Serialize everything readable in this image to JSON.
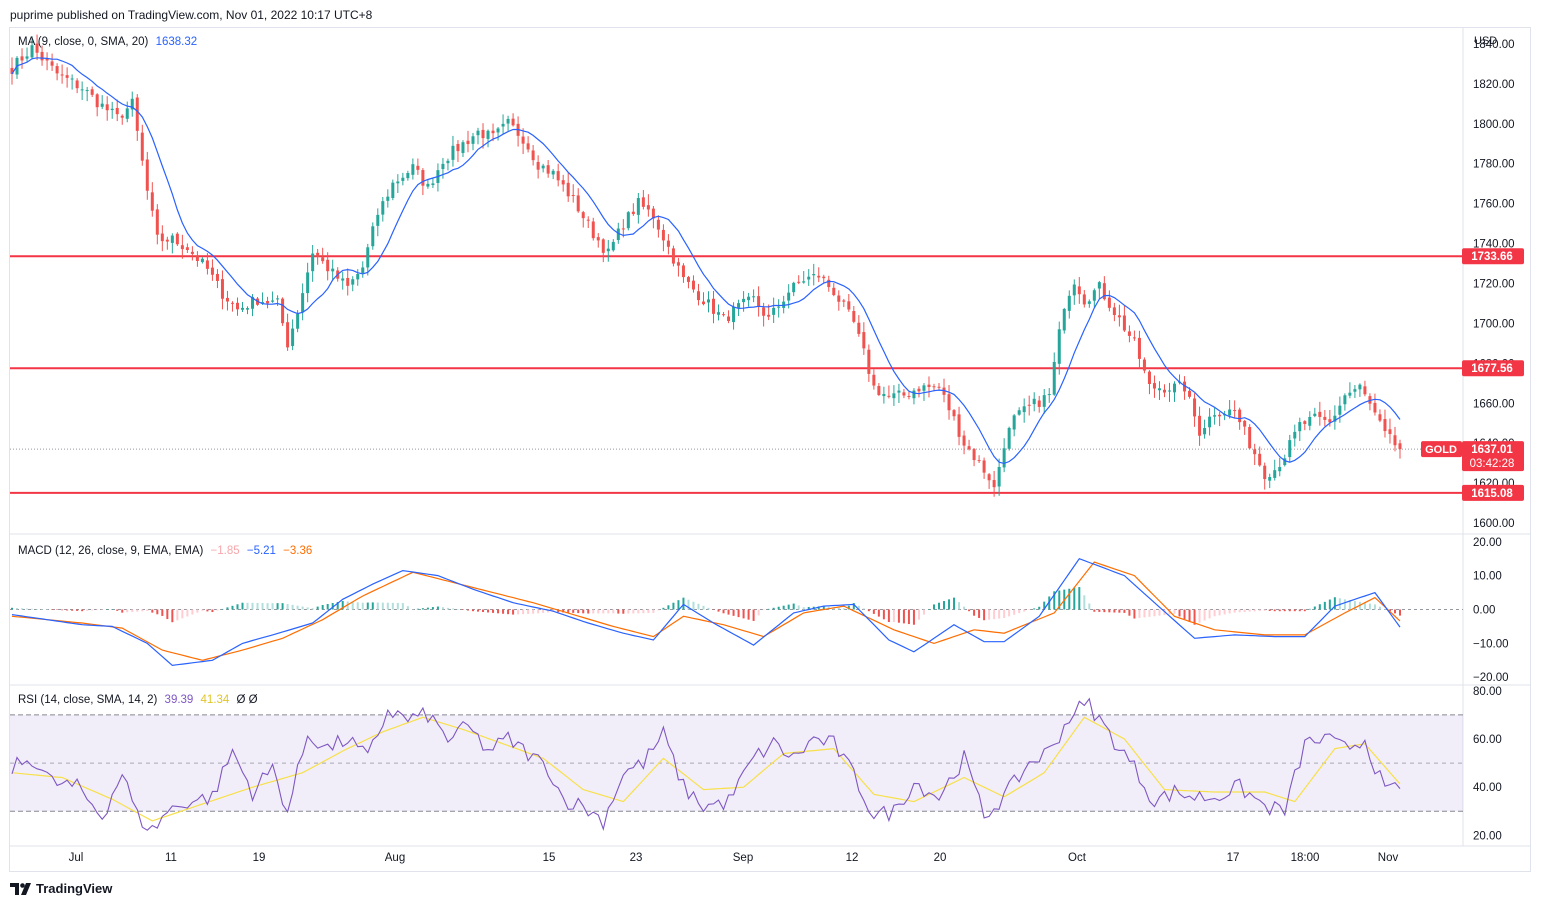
{
  "header": {
    "publisher_line": "puprime published on TradingView.com, Nov 01, 2022 10:17 UTC+8"
  },
  "footer": {
    "brand": "TradingView",
    "logo_icon": "tradingview-logo-icon"
  },
  "colors": {
    "up": "#26a69a",
    "down": "#ef5350",
    "level": "#f23645",
    "ma": "#2962ff",
    "macd": "#2962ff",
    "signal": "#ff6d00",
    "rsi": "#7e57c2",
    "rsi_ma": "#f7e04a"
  },
  "legends": {
    "ma": {
      "name": "MA (9, close, 0, SMA, 20)",
      "value": "1638.32"
    },
    "macd": {
      "name": "MACD (12, 26, close, 9, EMA, EMA)",
      "hist": "−1.85",
      "macd": "−5.21",
      "signal": "−3.36"
    },
    "rsi": {
      "name": "RSI (14, close, SMA, 14, 2)",
      "rsi": "39.39",
      "ma": "41.34",
      "extra": "Ø  Ø"
    }
  },
  "price_axis": {
    "currency": "USD"
  },
  "price_labels": {
    "symbol": "GOLD",
    "last": "1637.01",
    "countdown": "03:42:28",
    "levels": [
      1733.66,
      1677.56,
      1615.08
    ],
    "level_texts": [
      "1733.66",
      "1677.56",
      "1615.08"
    ]
  },
  "chart_data": [
    {
      "type": "candlestick",
      "title": "",
      "symbol": "GOLD",
      "currency": "USD",
      "ylim": [
        1595,
        1848
      ],
      "yticks": [
        1600,
        1620,
        1640,
        1660,
        1680,
        1700,
        1720,
        1740,
        1760,
        1780,
        1800,
        1820,
        1840
      ],
      "ytick_labels": [
        "1600.00",
        "1620.00",
        "1640.00",
        "1660.00",
        "1680.00",
        "1700.00",
        "1720.00",
        "1740.00",
        "1760.00",
        "1780.00",
        "1800.00",
        "1820.00",
        "1840.00"
      ],
      "x_tick_labels": [
        "Jul",
        "11",
        "19",
        "Aug",
        "15",
        "23",
        "Sep",
        "12",
        "20",
        "Oct",
        "17",
        "18:00",
        "Nov"
      ],
      "close_path_points": [
        [
          0,
          1828
        ],
        [
          4,
          1838
        ],
        [
          9,
          1825
        ],
        [
          14,
          1818
        ],
        [
          17,
          1811
        ],
        [
          21,
          1803
        ],
        [
          24,
          1810
        ],
        [
          27,
          1766
        ],
        [
          29,
          1742
        ],
        [
          32,
          1742
        ],
        [
          35,
          1738
        ],
        [
          39,
          1727
        ],
        [
          42,
          1715
        ],
        [
          45,
          1707
        ],
        [
          49,
          1712
        ],
        [
          53,
          1710
        ],
        [
          55,
          1690
        ],
        [
          57,
          1706
        ],
        [
          60,
          1736
        ],
        [
          64,
          1725
        ],
        [
          67,
          1718
        ],
        [
          70,
          1728
        ],
        [
          73,
          1755
        ],
        [
          76,
          1770
        ],
        [
          80,
          1778
        ],
        [
          83,
          1768
        ],
        [
          86,
          1782
        ],
        [
          90,
          1790
        ],
        [
          93,
          1796
        ],
        [
          96,
          1793
        ],
        [
          99,
          1800
        ],
        [
          102,
          1793
        ],
        [
          105,
          1780
        ],
        [
          108,
          1775
        ],
        [
          112,
          1762
        ],
        [
          116,
          1745
        ],
        [
          119,
          1735
        ],
        [
          122,
          1750
        ],
        [
          125,
          1760
        ],
        [
          128,
          1754
        ],
        [
          131,
          1738
        ],
        [
          134,
          1722
        ],
        [
          138,
          1712
        ],
        [
          142,
          1702
        ],
        [
          145,
          1708
        ],
        [
          148,
          1712
        ],
        [
          151,
          1702
        ],
        [
          155,
          1716
        ],
        [
          158,
          1722
        ],
        [
          161,
          1724
        ],
        [
          164,
          1716
        ],
        [
          168,
          1700
        ],
        [
          170,
          1685
        ],
        [
          172,
          1668
        ],
        [
          175,
          1663
        ],
        [
          178,
          1664
        ],
        [
          181,
          1668
        ],
        [
          185,
          1668
        ],
        [
          188,
          1652
        ],
        [
          190,
          1640
        ],
        [
          193,
          1630
        ],
        [
          195,
          1623
        ],
        [
          196,
          1617
        ],
        [
          198,
          1640
        ],
        [
          200,
          1652
        ],
        [
          203,
          1658
        ],
        [
          207,
          1664
        ],
        [
          210,
          1710
        ],
        [
          212,
          1722
        ],
        [
          214,
          1712
        ],
        [
          217,
          1718
        ],
        [
          220,
          1706
        ],
        [
          224,
          1690
        ],
        [
          227,
          1668
        ],
        [
          230,
          1668
        ],
        [
          234,
          1668
        ],
        [
          237,
          1646
        ],
        [
          240,
          1656
        ],
        [
          244,
          1656
        ],
        [
          247,
          1640
        ],
        [
          250,
          1625
        ],
        [
          252,
          1627
        ],
        [
          254,
          1634
        ],
        [
          257,
          1649
        ],
        [
          260,
          1652
        ],
        [
          263,
          1650
        ],
        [
          266,
          1664
        ],
        [
          269,
          1668
        ],
        [
          271,
          1659
        ],
        [
          274,
          1644
        ],
        [
          277,
          1637
        ]
      ],
      "ma": {
        "name": "MA (9, close, 0, SMA, 20)",
        "last": 1638.32
      },
      "horizontal_levels": [
        1733.66,
        1677.56,
        1615.08
      ],
      "last_price": 1637.01
    },
    {
      "type": "line",
      "name": "MACD (12, 26, close, 9, EMA, EMA)",
      "ylim": [
        -22,
        22
      ],
      "yticks": [
        20,
        10,
        0,
        -10,
        -20
      ],
      "ytick_labels": [
        "20.00",
        "10.00",
        "0.00",
        "−10.00",
        "−20.00"
      ],
      "macd_points": [
        [
          0,
          -1.5
        ],
        [
          14,
          -4.5
        ],
        [
          20,
          -5
        ],
        [
          27,
          -10
        ],
        [
          32,
          -16.5
        ],
        [
          40,
          -15
        ],
        [
          46,
          -10
        ],
        [
          52,
          -7.5
        ],
        [
          60,
          -4
        ],
        [
          66,
          3
        ],
        [
          72,
          7.5
        ],
        [
          78,
          11.5
        ],
        [
          85,
          10
        ],
        [
          92,
          6
        ],
        [
          100,
          2
        ],
        [
          108,
          -0.5
        ],
        [
          115,
          -4
        ],
        [
          122,
          -7
        ],
        [
          128,
          -9
        ],
        [
          134,
          1.5
        ],
        [
          140,
          -4
        ],
        [
          148,
          -10.5
        ],
        [
          156,
          -1
        ],
        [
          162,
          1
        ],
        [
          168,
          1.5
        ],
        [
          175,
          -9
        ],
        [
          180,
          -12.5
        ],
        [
          188,
          -4.5
        ],
        [
          194,
          -9.5
        ],
        [
          198,
          -9.5
        ],
        [
          205,
          -2
        ],
        [
          213,
          15
        ],
        [
          222,
          10
        ],
        [
          228,
          2
        ],
        [
          236,
          -8.5
        ],
        [
          244,
          -7.5
        ],
        [
          252,
          -8
        ],
        [
          258,
          -8
        ],
        [
          264,
          1
        ],
        [
          272,
          5
        ],
        [
          277,
          -5.2
        ]
      ],
      "signal_points": [
        [
          0,
          -2
        ],
        [
          14,
          -4
        ],
        [
          22,
          -5.5
        ],
        [
          30,
          -12
        ],
        [
          38,
          -15
        ],
        [
          46,
          -12
        ],
        [
          54,
          -8.5
        ],
        [
          62,
          -3
        ],
        [
          70,
          4
        ],
        [
          80,
          11
        ],
        [
          88,
          8
        ],
        [
          96,
          5
        ],
        [
          104,
          2
        ],
        [
          112,
          -1.5
        ],
        [
          120,
          -5
        ],
        [
          128,
          -8
        ],
        [
          134,
          -2
        ],
        [
          142,
          -4.5
        ],
        [
          150,
          -8
        ],
        [
          158,
          -1
        ],
        [
          166,
          1
        ],
        [
          176,
          -6
        ],
        [
          184,
          -10
        ],
        [
          192,
          -6
        ],
        [
          198,
          -7
        ],
        [
          208,
          -1
        ],
        [
          216,
          14
        ],
        [
          224,
          10
        ],
        [
          232,
          -2
        ],
        [
          240,
          -6
        ],
        [
          250,
          -7.5
        ],
        [
          258,
          -7.5
        ],
        [
          266,
          -1
        ],
        [
          272,
          3.5
        ],
        [
          277,
          -3.4
        ]
      ],
      "hist_last": -1.85,
      "macd_last": -5.21,
      "signal_last": -3.36
    },
    {
      "type": "line",
      "name": "RSI (14, close, SMA, 14, 2)",
      "ylim": [
        16,
        82
      ],
      "yticks": [
        80,
        60,
        40,
        20
      ],
      "ytick_labels": [
        "80.00",
        "60.00",
        "40.00",
        "20.00"
      ],
      "bands": [
        30,
        50,
        70
      ],
      "rsi_points": [
        [
          0,
          48
        ],
        [
          4,
          52
        ],
        [
          8,
          42
        ],
        [
          13,
          40
        ],
        [
          18,
          28
        ],
        [
          22,
          46
        ],
        [
          25,
          28
        ],
        [
          28,
          22
        ],
        [
          31,
          30
        ],
        [
          35,
          34
        ],
        [
          40,
          36
        ],
        [
          44,
          55
        ],
        [
          48,
          38
        ],
        [
          52,
          48
        ],
        [
          55,
          30
        ],
        [
          59,
          62
        ],
        [
          63,
          56
        ],
        [
          67,
          60
        ],
        [
          71,
          52
        ],
        [
          75,
          72
        ],
        [
          79,
          68
        ],
        [
          83,
          70
        ],
        [
          87,
          60
        ],
        [
          91,
          65
        ],
        [
          95,
          55
        ],
        [
          99,
          60
        ],
        [
          103,
          54
        ],
        [
          107,
          48
        ],
        [
          110,
          35
        ],
        [
          114,
          32
        ],
        [
          118,
          26
        ],
        [
          122,
          46
        ],
        [
          126,
          50
        ],
        [
          130,
          62
        ],
        [
          134,
          40
        ],
        [
          138,
          32
        ],
        [
          143,
          34
        ],
        [
          148,
          52
        ],
        [
          152,
          58
        ],
        [
          156,
          52
        ],
        [
          160,
          60
        ],
        [
          164,
          58
        ],
        [
          168,
          45
        ],
        [
          172,
          28
        ],
        [
          176,
          30
        ],
        [
          180,
          42
        ],
        [
          185,
          36
        ],
        [
          190,
          52
        ],
        [
          194,
          28
        ],
        [
          198,
          36
        ],
        [
          203,
          50
        ],
        [
          207,
          55
        ],
        [
          212,
          72
        ],
        [
          215,
          74
        ],
        [
          219,
          62
        ],
        [
          224,
          48
        ],
        [
          228,
          34
        ],
        [
          232,
          38
        ],
        [
          236,
          36
        ],
        [
          240,
          36
        ],
        [
          245,
          40
        ],
        [
          250,
          32
        ],
        [
          254,
          30
        ],
        [
          258,
          58
        ],
        [
          262,
          60
        ],
        [
          266,
          56
        ],
        [
          270,
          60
        ],
        [
          274,
          38
        ],
        [
          277,
          39.4
        ]
      ],
      "rsi_ma_points": [
        [
          0,
          46
        ],
        [
          10,
          44
        ],
        [
          20,
          35
        ],
        [
          28,
          26
        ],
        [
          38,
          33
        ],
        [
          48,
          40
        ],
        [
          58,
          46
        ],
        [
          66,
          55
        ],
        [
          74,
          63
        ],
        [
          82,
          69
        ],
        [
          90,
          64
        ],
        [
          98,
          58
        ],
        [
          106,
          52
        ],
        [
          114,
          39
        ],
        [
          122,
          34
        ],
        [
          130,
          52
        ],
        [
          138,
          39
        ],
        [
          146,
          40
        ],
        [
          154,
          54
        ],
        [
          164,
          56
        ],
        [
          172,
          37
        ],
        [
          180,
          34
        ],
        [
          190,
          44
        ],
        [
          198,
          36
        ],
        [
          206,
          46
        ],
        [
          214,
          69
        ],
        [
          222,
          60
        ],
        [
          230,
          39
        ],
        [
          240,
          38
        ],
        [
          250,
          38
        ],
        [
          256,
          34
        ],
        [
          264,
          56
        ],
        [
          270,
          58
        ],
        [
          277,
          41.3
        ]
      ],
      "rsi_last": 39.39,
      "ma_last": 41.34
    }
  ]
}
